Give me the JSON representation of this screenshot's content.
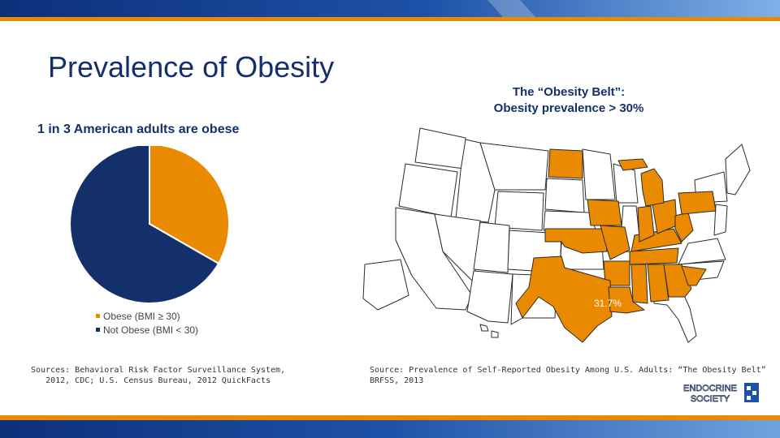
{
  "slide": {
    "title": "Prevalence of Obesity",
    "subtitle": "1 in 3 American adults are obese",
    "map_title_line1": "The “Obesity Belt”:",
    "map_title_line2": "Obesity prevalence > 30%",
    "map_value_label": "31.7%",
    "source_left_line1": "Sources: Behavioral Risk Factor Surveillance System,",
    "source_left_line2": "2012, CDC; U.S. Census Bureau, 2012 QuickFacts",
    "source_right_line1": "Source: Prevalence of Self-Reported Obesity Among U.S. Adults: “The Obesity Belt”",
    "source_right_line2": "BRFSS, 2013",
    "logo_line1": "ENDOCRINE",
    "logo_line2": "SOCIETY"
  },
  "colors": {
    "obese": "#e98a00",
    "not_obese": "#14306b",
    "title": "#14306b",
    "map_nonobese": "#ffffff",
    "map_border": "#2b2b2b",
    "accent_blue": "#1d52a8"
  },
  "chart_data": [
    {
      "type": "pie",
      "title": "1 in 3 American adults are obese",
      "categories": [
        "Obese (BMI ≥ 30)",
        "Not Obese (BMI < 30)"
      ],
      "values": [
        33.3,
        66.7
      ],
      "legend": "bottom"
    }
  ],
  "map": {
    "highlighted_states": [
      "ND",
      "IA",
      "OK",
      "TX",
      "LA",
      "AR",
      "MO",
      "MS",
      "AL",
      "TN",
      "KY",
      "IN",
      "MI",
      "OH",
      "WV",
      "SC",
      "GA",
      "PA"
    ],
    "highlight_meaning": "Obesity prevalence > 30%"
  }
}
